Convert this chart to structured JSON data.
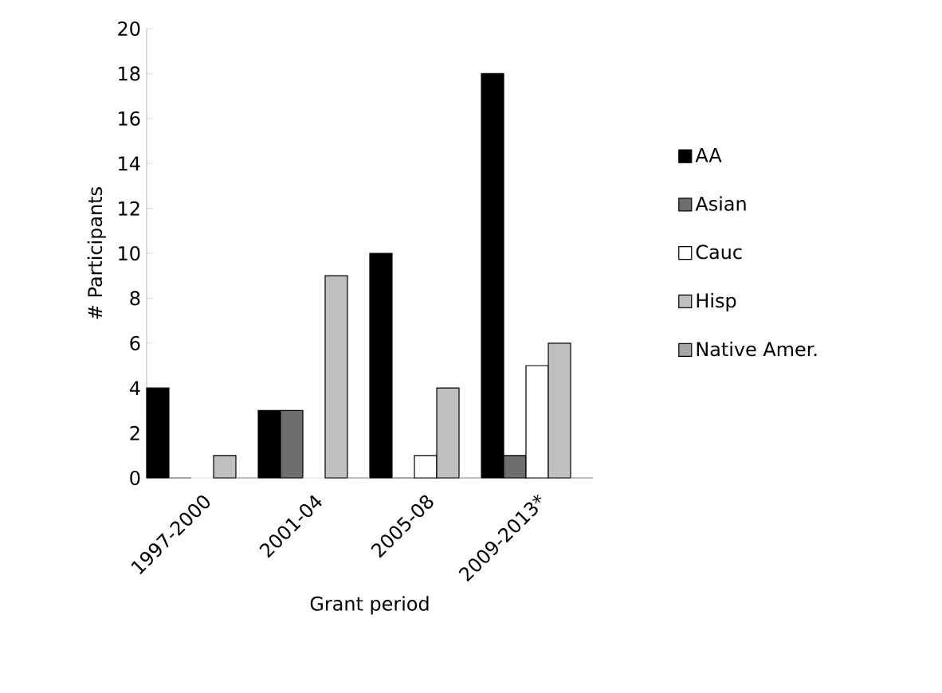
{
  "chart_data": {
    "type": "bar",
    "xlabel": "Grant period",
    "ylabel": "# Participants",
    "categories": [
      "1997-2000",
      "2001-04",
      "2005-08",
      "2009-2013*"
    ],
    "series": [
      {
        "name": "AA",
        "color": "#000000",
        "values": [
          4,
          3,
          10,
          18
        ]
      },
      {
        "name": "Asian",
        "color": "#6e6e6e",
        "values": [
          0,
          3,
          0,
          1
        ]
      },
      {
        "name": "Cauc",
        "color": "#ffffff",
        "values": [
          0,
          0,
          1,
          5
        ]
      },
      {
        "name": "Hisp",
        "color": "#bfbfbf",
        "values": [
          1,
          9,
          4,
          6
        ]
      },
      {
        "name": "Native Amer.",
        "color": "#a6a6a6",
        "values": [
          0,
          0,
          0,
          0
        ]
      }
    ],
    "ylim": [
      0,
      20
    ],
    "yticks": [
      0,
      2,
      4,
      6,
      8,
      10,
      12,
      14,
      16,
      18,
      20
    ],
    "grid": false,
    "legend": "right"
  }
}
